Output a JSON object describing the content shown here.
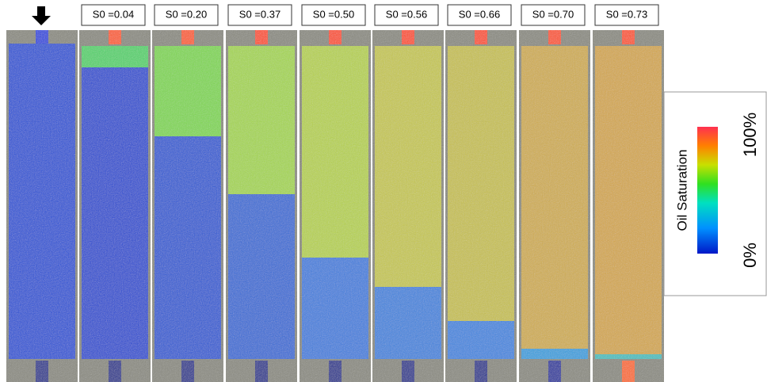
{
  "panels": [
    {
      "label": null
    },
    {
      "label": "S0 =0.04"
    },
    {
      "label": "S0 =0.20"
    },
    {
      "label": "S0 =0.37"
    },
    {
      "label": "S0 =0.50"
    },
    {
      "label": "S0 =0.56"
    },
    {
      "label": "S0 =0.66"
    },
    {
      "label": "S0 =0.70"
    },
    {
      "label": "S0 =0.73"
    }
  ],
  "colorbar": {
    "title": "Oil Saturation",
    "max_label": "100%",
    "min_label": "0%"
  }
}
